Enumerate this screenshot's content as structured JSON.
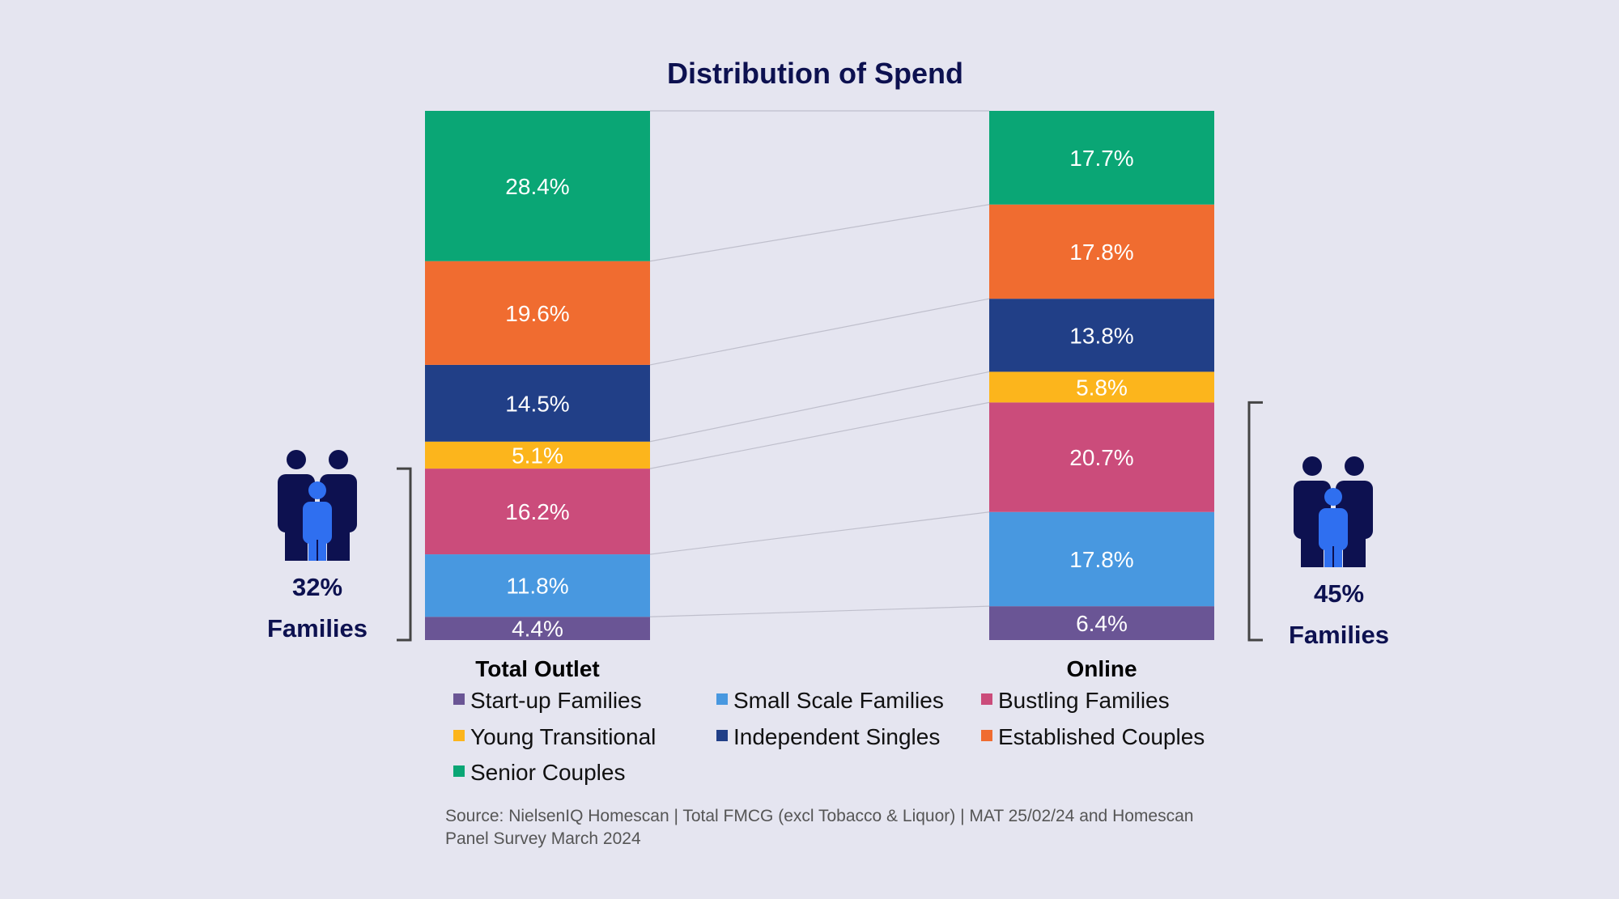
{
  "chart_data": {
    "type": "bar",
    "stacked": true,
    "percent_stacked": true,
    "title": "Distribution of Spend",
    "categories": [
      "Total Outlet",
      "Online"
    ],
    "series": [
      {
        "name": "Start-up Families",
        "color": "#6a5595",
        "values": [
          4.4,
          6.4
        ],
        "labels": [
          "4.4%",
          "6.4%"
        ]
      },
      {
        "name": "Small Scale Families",
        "color": "#4898e0",
        "values": [
          11.8,
          17.8
        ],
        "labels": [
          "11.8%",
          "17.8%"
        ]
      },
      {
        "name": "Bustling Families",
        "color": "#cb4c7b",
        "values": [
          16.2,
          20.7
        ],
        "labels": [
          "16.2%",
          "20.7%"
        ]
      },
      {
        "name": "Young Transitional",
        "color": "#fcb51c",
        "values": [
          5.1,
          5.8
        ],
        "labels": [
          "5.1%",
          "5.8%"
        ]
      },
      {
        "name": "Independent Singles",
        "color": "#213f87",
        "values": [
          14.5,
          13.8
        ],
        "labels": [
          "14.5%",
          "13.8%"
        ]
      },
      {
        "name": "Established Couples",
        "color": "#f06c30",
        "values": [
          19.6,
          17.8
        ],
        "labels": [
          "19.6%",
          "17.8%"
        ]
      },
      {
        "name": "Senior Couples",
        "color": "#0aa675",
        "values": [
          28.4,
          17.7
        ],
        "labels": [
          "28.4%",
          "17.7%"
        ]
      }
    ],
    "ylim": [
      0,
      100
    ],
    "grid": false,
    "legend_position": "bottom",
    "annotations": [
      {
        "category": "Total Outlet",
        "side": "left",
        "pct": "32%",
        "label": "Families",
        "covers": [
          "Start-up Families",
          "Small Scale Families",
          "Bustling Families"
        ]
      },
      {
        "category": "Online",
        "side": "right",
        "pct": "45%",
        "label": "Families",
        "covers": [
          "Start-up Families",
          "Small Scale Families",
          "Bustling Families"
        ]
      }
    ]
  },
  "source": {
    "line1": "Source: NielsenIQ Homescan | Total FMCG (excl Tobacco & Liquor) | MAT 25/02/24 and Homescan",
    "line2": "Panel Survey March 2024"
  },
  "colors": {
    "background": "#e5e5f0",
    "title": "#0d1150",
    "icon_adult": "#0d1150",
    "icon_child": "#2f6ff0",
    "bracket": "#444444",
    "connector": "#bfbfcc"
  },
  "icons": {
    "family": "family-icon"
  }
}
